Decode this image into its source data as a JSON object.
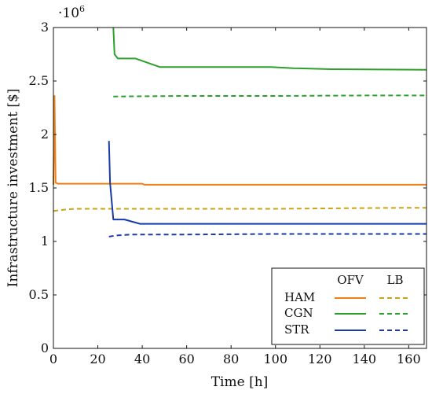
{
  "chart_data": {
    "type": "line",
    "xlabel": "Time [h]",
    "ylabel": "Infrastructure investment [$]",
    "y_multiplier_label": "·10",
    "y_multiplier_exp": "6",
    "xlim": [
      0,
      168
    ],
    "ylim": [
      0,
      3
    ],
    "x_ticks": [
      0,
      20,
      40,
      60,
      80,
      100,
      120,
      140,
      160
    ],
    "y_ticks": [
      0,
      0.5,
      1,
      1.5,
      2,
      2.5,
      3
    ],
    "y_tick_labels": [
      "0",
      "0.5",
      "1",
      "1.5",
      "2",
      "2.5",
      "3"
    ],
    "grid": false,
    "legend": {
      "position": "bottom-right",
      "columns": [
        "OFV",
        "LB"
      ],
      "rows": [
        "HAM",
        "CGN",
        "STR"
      ]
    },
    "series": [
      {
        "name": "HAM",
        "kind": "OFV",
        "color": "#f07f14",
        "dash": "solid",
        "x": [
          0,
          0.5,
          1,
          2,
          40,
          41,
          168
        ],
        "y": [
          1.53,
          2.36,
          1.55,
          1.54,
          1.54,
          1.53,
          1.53
        ]
      },
      {
        "name": "HAM",
        "kind": "LB",
        "color": "#c9a319",
        "dash": "dashed",
        "x": [
          0,
          2,
          6,
          10,
          30,
          60,
          100,
          130,
          160,
          168
        ],
        "y": [
          1.285,
          1.29,
          1.3,
          1.305,
          1.305,
          1.305,
          1.305,
          1.31,
          1.315,
          1.315
        ]
      },
      {
        "name": "CGN",
        "kind": "OFV",
        "color": "#2ca02c",
        "dash": "solid",
        "x": [
          27,
          27.5,
          29,
          37,
          48,
          98,
          108,
          125,
          168
        ],
        "y": [
          3.0,
          2.75,
          2.71,
          2.71,
          2.63,
          2.63,
          2.62,
          2.61,
          2.605
        ]
      },
      {
        "name": "CGN",
        "kind": "LB",
        "color": "#2ca02c",
        "dash": "dashed",
        "x": [
          27,
          60,
          100,
          140,
          168
        ],
        "y": [
          2.355,
          2.36,
          2.36,
          2.365,
          2.365
        ]
      },
      {
        "name": "STR",
        "kind": "OFV",
        "color": "#1a3aa8",
        "dash": "solid",
        "x": [
          25,
          25.5,
          26.5,
          27,
          32,
          39,
          168
        ],
        "y": [
          1.94,
          1.55,
          1.32,
          1.205,
          1.205,
          1.165,
          1.165
        ]
      },
      {
        "name": "STR",
        "kind": "LB",
        "color": "#1a3aa8",
        "dash": "dashed",
        "x": [
          25,
          28,
          35,
          60,
          100,
          168
        ],
        "y": [
          1.045,
          1.055,
          1.065,
          1.065,
          1.07,
          1.07
        ]
      }
    ]
  }
}
